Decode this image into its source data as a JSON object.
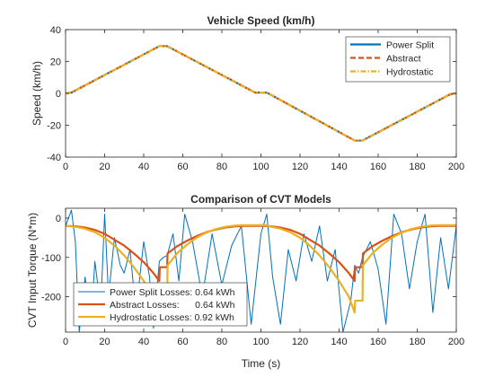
{
  "chart_data": [
    {
      "type": "line",
      "title": "Vehicle Speed (km/h)",
      "xlabel": "",
      "ylabel": "Speed (km/h)",
      "xlim": [
        0,
        200
      ],
      "ylim": [
        -40,
        40
      ],
      "xticks": [
        0,
        20,
        40,
        60,
        80,
        100,
        120,
        140,
        160,
        180,
        200
      ],
      "yticks": [
        -40,
        -20,
        0,
        20,
        40
      ],
      "grid": false,
      "legend_position": "top-right",
      "series": [
        {
          "name": "Power Split",
          "color": "#0072BD",
          "style": "solid",
          "x": [
            0,
            3,
            48,
            52,
            97,
            103,
            148,
            152,
            197,
            200
          ],
          "y": [
            0,
            0.5,
            29.6,
            29.6,
            0.5,
            0.5,
            -29.6,
            -29.6,
            -0.5,
            0
          ]
        },
        {
          "name": "Abstract",
          "color": "#D95319",
          "style": "dashed",
          "x": [
            0,
            3,
            48,
            52,
            97,
            103,
            148,
            152,
            197,
            200
          ],
          "y": [
            0,
            0.5,
            29.6,
            29.6,
            0.5,
            0.5,
            -29.6,
            -29.6,
            -0.5,
            0
          ]
        },
        {
          "name": "Hydrostatic",
          "color": "#EDB120",
          "style": "dashdot",
          "x": [
            0,
            3,
            48,
            52,
            97,
            103,
            148,
            152,
            197,
            200
          ],
          "y": [
            0,
            0.5,
            29.6,
            29.6,
            0.5,
            0.5,
            -29.6,
            -29.6,
            -0.5,
            0
          ]
        }
      ]
    },
    {
      "type": "line",
      "title": "Comparison of CVT Models",
      "xlabel": "Time (s)",
      "ylabel": "CVT Input Torque (N*m)",
      "xlim": [
        0,
        200
      ],
      "ylim": [
        -290,
        25
      ],
      "xticks": [
        0,
        20,
        40,
        60,
        80,
        100,
        120,
        140,
        160,
        180,
        200
      ],
      "yticks": [
        -200,
        -100,
        0
      ],
      "grid": false,
      "legend_position": "bottom-left",
      "series": [
        {
          "name": "Power Split Losses: 0.64 kWh",
          "color": "#0072BD",
          "style": "thin-oscillating",
          "x": [
            0,
            3,
            5,
            7,
            10,
            13,
            15,
            18,
            20,
            22,
            25,
            28,
            30,
            33,
            36,
            40,
            43,
            45,
            48,
            50,
            52,
            55,
            58,
            61,
            65,
            70,
            75,
            80,
            85,
            90,
            95,
            100,
            103,
            106,
            110,
            114,
            118,
            122,
            126,
            130,
            134,
            138,
            142,
            146,
            148,
            150,
            152,
            156,
            160,
            164,
            168,
            172,
            176,
            180,
            184,
            188,
            192,
            196,
            200
          ],
          "y": [
            -20,
            20,
            -60,
            -290,
            -150,
            -270,
            -110,
            -230,
            10,
            -200,
            -50,
            -120,
            -140,
            -80,
            -240,
            -60,
            -150,
            -280,
            -110,
            -100,
            -95,
            -40,
            -160,
            10,
            -60,
            -200,
            -40,
            -170,
            -70,
            -20,
            -270,
            -40,
            10,
            -150,
            -270,
            -80,
            -160,
            -40,
            -110,
            -20,
            -160,
            -80,
            -290,
            -210,
            -120,
            -140,
            -100,
            -60,
            -130,
            -270,
            10,
            -40,
            -180,
            -60,
            10,
            -240,
            -50,
            -180,
            -20
          ]
        },
        {
          "name": "Abstract Losses:      0.64 kWh",
          "color": "#D95319",
          "style": "solid-thick",
          "x": [
            0,
            5,
            10,
            15,
            20,
            25,
            30,
            35,
            40,
            45,
            48,
            48.2,
            52,
            52.2,
            57,
            62,
            67,
            72,
            77,
            82,
            87,
            92,
            95,
            100,
            103,
            105,
            110,
            115,
            120,
            125,
            130,
            135,
            140,
            145,
            148,
            148.2,
            152,
            152.2,
            157,
            162,
            167,
            172,
            177,
            182,
            187,
            192,
            195,
            200
          ],
          "y": [
            -20,
            -21,
            -24,
            -30,
            -40,
            -55,
            -70,
            -90,
            -112,
            -140,
            -160,
            -125,
            -125,
            -90,
            -72,
            -58,
            -46,
            -36,
            -29,
            -24,
            -21,
            -20,
            -20,
            -20,
            -20,
            -21,
            -24,
            -30,
            -40,
            -55,
            -70,
            -90,
            -112,
            -140,
            -160,
            -125,
            -125,
            -90,
            -72,
            -58,
            -46,
            -36,
            -29,
            -24,
            -21,
            -20,
            -20,
            -20
          ]
        },
        {
          "name": "Hydrostatic Losses: 0.92 kWh",
          "color": "#EDB120",
          "style": "solid-thick",
          "x": [
            0,
            5,
            10,
            15,
            20,
            25,
            30,
            35,
            40,
            45,
            48,
            48.2,
            52,
            52.2,
            57,
            62,
            67,
            72,
            77,
            82,
            87,
            92,
            95,
            100,
            103,
            105,
            110,
            115,
            120,
            125,
            130,
            135,
            140,
            145,
            148,
            148.2,
            152,
            152.2,
            157,
            162,
            167,
            172,
            177,
            182,
            187,
            192,
            195,
            200
          ],
          "y": [
            -20,
            -22,
            -27,
            -36,
            -50,
            -70,
            -95,
            -125,
            -160,
            -200,
            -240,
            -210,
            -210,
            -120,
            -90,
            -68,
            -50,
            -37,
            -28,
            -22,
            -19,
            -18,
            -18,
            -18,
            -18,
            -22,
            -27,
            -36,
            -50,
            -70,
            -95,
            -125,
            -160,
            -200,
            -240,
            -210,
            -210,
            -120,
            -90,
            -68,
            -50,
            -37,
            -28,
            -22,
            -19,
            -18,
            -18,
            -18
          ]
        }
      ]
    }
  ]
}
